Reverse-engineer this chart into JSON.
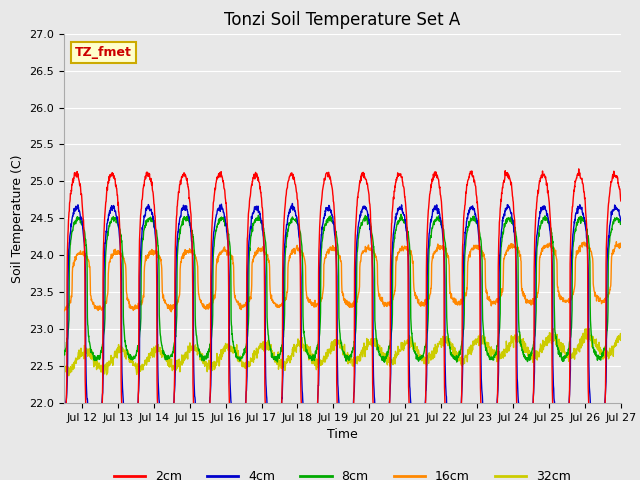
{
  "title": "Tonzi Soil Temperature Set A",
  "xlabel": "Time",
  "ylabel": "Soil Temperature (C)",
  "ylim": [
    22.0,
    27.0
  ],
  "yticks": [
    22.0,
    22.5,
    23.0,
    23.5,
    24.0,
    24.5,
    25.0,
    25.5,
    26.0,
    26.5,
    27.0
  ],
  "annotation_text": "TZ_fmet",
  "annotation_bg": "#ffffcc",
  "annotation_border": "#ccaa00",
  "annotation_color": "#cc0000",
  "bg_color": "#e8e8e8",
  "fig_bg_color": "#e8e8e8",
  "colors": {
    "2cm": "#ff0000",
    "4cm": "#0000cc",
    "8cm": "#00aa00",
    "16cm": "#ff8800",
    "32cm": "#cccc00"
  },
  "legend_labels": [
    "2cm",
    "4cm",
    "8cm",
    "16cm",
    "32cm"
  ],
  "n_points": 2000,
  "start_day": 11.5,
  "end_day": 27.0,
  "period_hours": 24.0,
  "base_2cm": 23.1,
  "amp_2cm": 2.0,
  "base_4cm": 23.1,
  "amp_4cm": 1.55,
  "base_8cm": 23.55,
  "amp_8cm": 0.95,
  "base_16cm": 23.65,
  "amp_16cm": 0.38,
  "base_32cm": 22.57,
  "amp_32cm": 0.13,
  "phase_shift_2cm": 0.0,
  "phase_shift_4cm": 0.5,
  "phase_shift_8cm": 1.5,
  "phase_shift_16cm": 3.5,
  "phase_shift_32cm": 6.0,
  "sharpness": 3.5,
  "trend_32cm": 0.22,
  "trend_16cm": 0.12,
  "title_fontsize": 12,
  "label_fontsize": 9,
  "tick_fontsize": 8,
  "legend_fontsize": 9,
  "xtick_locs": [
    12,
    13,
    14,
    15,
    16,
    17,
    18,
    19,
    20,
    21,
    22,
    23,
    24,
    25,
    26,
    27
  ],
  "xtick_labels": [
    "Jul 12",
    "Jul 13",
    "Jul 14",
    "Jul 15",
    "Jul 16",
    "Jul 17",
    "Jul 18",
    "Jul 19",
    "Jul 20",
    "Jul 21",
    "Jul 22",
    "Jul 23",
    "Jul 24",
    "Jul 25",
    "Jul 26",
    "Jul 27"
  ],
  "linewidth": 1.0
}
